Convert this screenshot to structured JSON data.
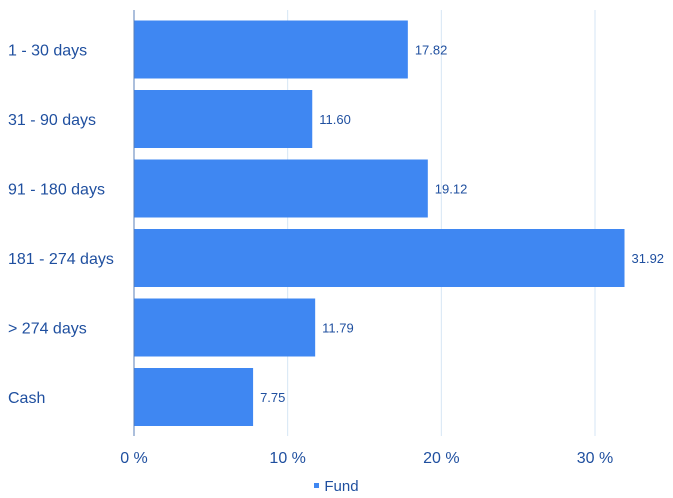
{
  "chart_data": {
    "type": "bar",
    "orientation": "horizontal",
    "categories": [
      "1 - 30 days",
      "31 - 90 days",
      "91 - 180 days",
      "181 - 274 days",
      "> 274 days",
      "Cash"
    ],
    "series": [
      {
        "name": "Fund",
        "values": [
          17.82,
          11.6,
          19.12,
          31.92,
          11.79,
          7.75
        ]
      }
    ],
    "data_labels": [
      "17.82",
      "11.60",
      "19.12",
      "31.92",
      "11.79",
      "7.75"
    ],
    "x_ticks": [
      0,
      10,
      20,
      30
    ],
    "x_tick_labels": [
      "0 %",
      "10 %",
      "20 %",
      "30 %"
    ],
    "xlim": [
      0,
      34
    ],
    "grid": true,
    "legend_position": "bottom-center",
    "colors": {
      "bar": "#3f87f2",
      "text": "#1f4f9f",
      "grid": "#d6e6f5",
      "axis": "#5a7fb8"
    }
  }
}
